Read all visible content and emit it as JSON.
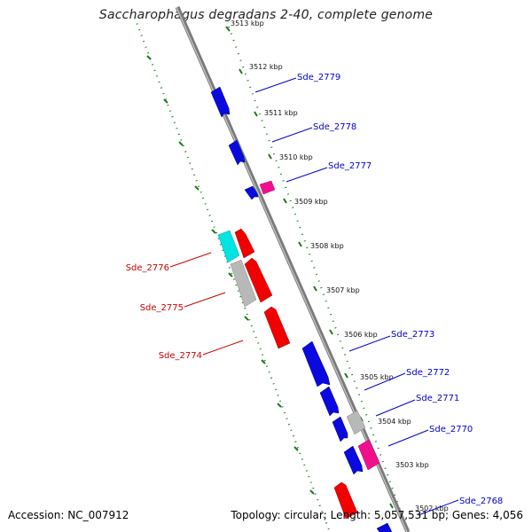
{
  "title": "Saccharophagus degradans 2-40, complete genome",
  "footer": {
    "accession": "Accession: NC_007912",
    "summary": "Topology: circular; Length: 5,057,531 bp; Genes: 4,056"
  },
  "colors": {
    "backbone": "#808080",
    "ruler": "#1a7a1a",
    "forward_label": "#0000cc",
    "reverse_label": "#cc0000",
    "blue": "#0a0ae0",
    "red": "#f00000",
    "magenta": "#f0108c",
    "cyan": "#00e0e0",
    "gray": "#b0b0b0"
  },
  "kbp_ticks": [
    {
      "label": "3513 kbp"
    },
    {
      "label": "3512 kbp"
    },
    {
      "label": "3511 kbp"
    },
    {
      "label": "3510 kbp"
    },
    {
      "label": "3509 kbp"
    },
    {
      "label": "3508 kbp"
    },
    {
      "label": "3507 kbp"
    },
    {
      "label": "3506 kbp"
    },
    {
      "label": "3505 kbp"
    },
    {
      "label": "3504 kbp"
    },
    {
      "label": "3503 kbp"
    },
    {
      "label": "3502 kbp"
    }
  ],
  "gene_labels_forward": [
    {
      "name": "Sde_2779"
    },
    {
      "name": "Sde_2778"
    },
    {
      "name": "Sde_2777"
    },
    {
      "name": "Sde_2773"
    },
    {
      "name": "Sde_2772"
    },
    {
      "name": "Sde_2771"
    },
    {
      "name": "Sde_2770"
    },
    {
      "name": "Sde_2768"
    }
  ],
  "gene_labels_reverse": [
    {
      "name": "Sde_2776"
    },
    {
      "name": "Sde_2775"
    },
    {
      "name": "Sde_2774"
    }
  ]
}
